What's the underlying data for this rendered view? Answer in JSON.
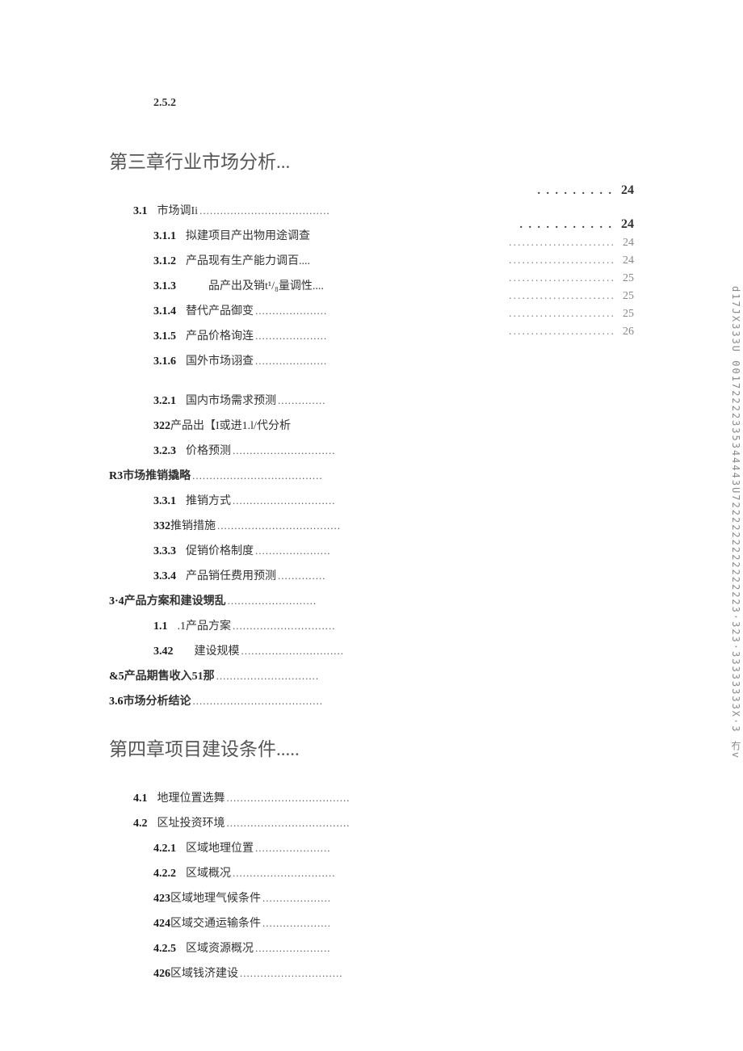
{
  "top_section": "2.5.2",
  "chapter3": {
    "title": "第三章行业市场分析...",
    "items": [
      {
        "level": 1,
        "num": "3.1",
        "label": "市场调Ii",
        "dots": "......................................"
      },
      {
        "level": 2,
        "num": "3.1.1",
        "label": "拟建项目产出物用途调查",
        "dots": ""
      },
      {
        "level": 2,
        "num": "3.1.2",
        "label": "产品现有生产能力调百....",
        "dots": ""
      },
      {
        "level": 2,
        "num": "3.1.3",
        "label": "　　品产出及销t¹/₈量调性....",
        "dots": ""
      },
      {
        "level": 2,
        "num": "3.1.4",
        "label": "替代产品御变",
        "dots": "....................."
      },
      {
        "level": 2,
        "num": "3.1.5",
        "label": "产品价格询连",
        "dots": "....................."
      },
      {
        "level": 2,
        "num": "3.1.6",
        "label": "国外市场诩查",
        "dots": "....................."
      },
      {
        "gap": true
      },
      {
        "level": 2,
        "num": "3.2.1",
        "label": "国内市场需求预测",
        "dots": ".............."
      },
      {
        "level": 2,
        "num": "",
        "label_html": "322产品出【I或进<span class=\"highlight\">1.l</span>/代分析",
        "dots": ""
      },
      {
        "level": 2,
        "num": "3.2.3",
        "label": "价格预测",
        "dots": ".............................."
      },
      {
        "level": 0,
        "num": "",
        "label": "R3市场推销撬略",
        "dots": "......................................"
      },
      {
        "level": 2,
        "num": "3.3.1",
        "label": "推销方式",
        "dots": ".............................."
      },
      {
        "level": 2,
        "num": "",
        "label": "332推销措施",
        "dots": "...................................."
      },
      {
        "level": 2,
        "num": "3.3.3",
        "label": "促销价格制度",
        "dots": "......................"
      },
      {
        "level": 2,
        "num": "3.3.4",
        "label": "产品销任费用预测",
        "dots": ".............."
      },
      {
        "level": 0,
        "num": "",
        "label": "3·4产品方案和建设甥乱",
        "dots": ".........................."
      },
      {
        "level": 2,
        "num": "1.1",
        "label": ".1产品方案",
        "dots": ".............................."
      },
      {
        "level": 2,
        "num": "3.42",
        "label": "　建设规模",
        "dots": ".............................."
      },
      {
        "level": 0,
        "num": "",
        "label": "&5产品期售收入51那",
        "dots": ".............................."
      },
      {
        "level": 0,
        "num": "",
        "label": "3.6市场分析结论",
        "dots": "......................................"
      }
    ]
  },
  "chapter4": {
    "title": "第四章项目建设条件.....",
    "items": [
      {
        "level": 1,
        "num": "4.1",
        "label": "地理位置选舞",
        "dots": "...................................."
      },
      {
        "level": 1,
        "num": "4.2",
        "label": "区址投资环境",
        "dots": "...................................."
      },
      {
        "level": 2,
        "num": "4.2.1",
        "label": "区域地理位置",
        "dots": "......................"
      },
      {
        "level": 2,
        "num": "4.2.2",
        "label": "区域概况",
        "dots": ".............................."
      },
      {
        "level": 2,
        "num": "",
        "label": "423区域地理气候条件",
        "dots": "...................."
      },
      {
        "level": 2,
        "num": "",
        "label": "424区域交通运输条件",
        "dots": "...................."
      },
      {
        "level": 2,
        "num": "4.2.5",
        "label": "区域资源概况",
        "dots": "......................"
      },
      {
        "level": 2,
        "num": "",
        "label": "426区域钱济建设",
        "dots": ".............................."
      }
    ]
  },
  "right_pages": [
    {
      "dots": ". . . . . . . . .",
      "num": "24",
      "bold": true
    },
    {
      "dots": ". . . . . . . . . . .",
      "num": "24",
      "bold": true
    },
    {
      "dots": "...........................",
      "num": "24",
      "bold": false
    },
    {
      "dots": "...........................",
      "num": "24",
      "bold": false
    },
    {
      "dots": "...........................",
      "num": "25",
      "bold": false
    },
    {
      "dots": "...........................",
      "num": "25",
      "bold": false
    },
    {
      "dots": "...........................",
      "num": "25",
      "bold": false
    },
    {
      "dots": "...........................",
      "num": "26",
      "bold": false
    }
  ],
  "vertical_text": "d17JX333U 00172222335344443U7222222222222223·323·33333333X·3 冇v"
}
